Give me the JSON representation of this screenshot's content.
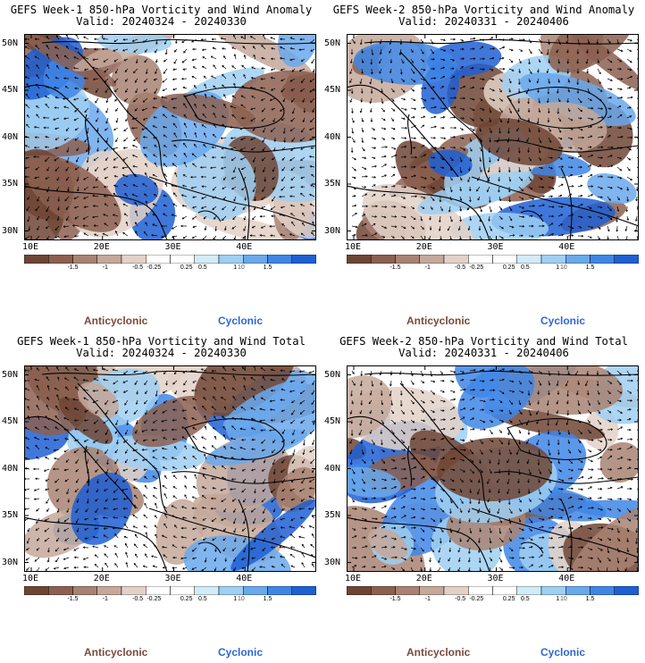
{
  "panels": [
    {
      "title": "GEFS Week-1 850-hPa Vorticity and Wind Anomaly",
      "valid": "Valid: 20240324 - 20240330",
      "seed": 1
    },
    {
      "title": "GEFS Week-2 850-hPa Vorticity and Wind Anomaly",
      "valid": "Valid: 20240331 - 20240406",
      "seed": 2
    },
    {
      "title": "GEFS Week-1 850-hPa Vorticity and Wind Total",
      "valid": "Valid: 20240324 - 20240330",
      "seed": 3
    },
    {
      "title": "GEFS Week-2 850-hPa Vorticity and Wind Total",
      "valid": "Valid: 20240331 - 20240406",
      "seed": 4
    }
  ],
  "map": {
    "lat_labels": [
      "50N",
      "45N",
      "40N",
      "35N",
      "30N"
    ],
    "lon_labels": [
      "10E",
      "20E",
      "30E",
      "40E"
    ],
    "lat_range": [
      29,
      51
    ],
    "lon_range": [
      9,
      50
    ]
  },
  "colorbar": {
    "colors": [
      "#6e4535",
      "#8c6050",
      "#a88272",
      "#c4a89a",
      "#e3d1c7",
      "#ffffff",
      "#ffffff",
      "#d2ecf7",
      "#9fcff2",
      "#6aa8ec",
      "#3f86e6",
      "#1f5fd4"
    ],
    "tick_labels": [
      "-1.5",
      "-1",
      "-0.5",
      "-0.25",
      "0.25",
      "0.5",
      "1",
      "1.5"
    ],
    "ticks": [
      -1.5,
      -1,
      -0.5,
      -0.25,
      0.25,
      0.5,
      1,
      1.5
    ],
    "range": [
      -2.25,
      2.25
    ],
    "scale_label": "10"
  },
  "legend": {
    "anticyclonic": "Anticyclonic",
    "cyclonic": "Cyclonic"
  }
}
